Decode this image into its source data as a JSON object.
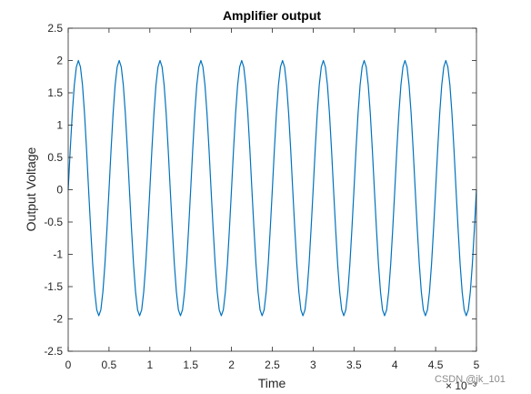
{
  "chart_data": {
    "type": "line",
    "title": "Amplifier output",
    "xlabel": "Time",
    "ylabel": "Output Voltage",
    "x_exponent": "× 10⁻³",
    "xlim": [
      0,
      5
    ],
    "ylim": [
      -2.5,
      2.5
    ],
    "x_ticks": [
      0,
      0.5,
      1,
      1.5,
      2,
      2.5,
      3,
      3.5,
      4,
      4.5,
      5
    ],
    "x_tick_labels": [
      "0",
      "0.5",
      "1",
      "1.5",
      "2",
      "2.5",
      "3",
      "3.5",
      "4",
      "4.5",
      "5"
    ],
    "y_ticks": [
      -2.5,
      -2,
      -1.5,
      -1,
      -0.5,
      0,
      0.5,
      1,
      1.5,
      2,
      2.5
    ],
    "y_tick_labels": [
      "-2.5",
      "-2",
      "-1.5",
      "-1",
      "-0.5",
      "0",
      "0.5",
      "1",
      "1.5",
      "2",
      "2.5"
    ],
    "grid": false,
    "line_color": "#0072BD",
    "series": [
      {
        "x": [
          0,
          0.025,
          0.05,
          0.075,
          0.1,
          0.125,
          0.15,
          0.175,
          0.2,
          0.225,
          0.25,
          0.275,
          0.3,
          0.325,
          0.35,
          0.375,
          0.4,
          0.425,
          0.45,
          0.475,
          0.5,
          0.525,
          0.55,
          0.575,
          0.6,
          0.625,
          0.65,
          0.675,
          0.7,
          0.725,
          0.75,
          0.775,
          0.8,
          0.825,
          0.85,
          0.875,
          0.9,
          0.925,
          0.95,
          0.975,
          1,
          1.025,
          1.05,
          1.075,
          1.1,
          1.125,
          1.15,
          1.175,
          1.2,
          1.225,
          1.25,
          1.275,
          1.3,
          1.325,
          1.35,
          1.375,
          1.4,
          1.425,
          1.45,
          1.475,
          1.5,
          1.525,
          1.55,
          1.575,
          1.6,
          1.625,
          1.65,
          1.675,
          1.7,
          1.725,
          1.75,
          1.775,
          1.8,
          1.825,
          1.85,
          1.875,
          1.9,
          1.925,
          1.95,
          1.975,
          2,
          2.025,
          2.05,
          2.075,
          2.1,
          2.125,
          2.15,
          2.175,
          2.2,
          2.225,
          2.25,
          2.275,
          2.3,
          2.325,
          2.35,
          2.375,
          2.4,
          2.425,
          2.45,
          2.475,
          2.5,
          2.525,
          2.55,
          2.575,
          2.6,
          2.625,
          2.65,
          2.675,
          2.7,
          2.725,
          2.75,
          2.775,
          2.8,
          2.825,
          2.85,
          2.875,
          2.9,
          2.925,
          2.95,
          2.975,
          3,
          3.025,
          3.05,
          3.075,
          3.1,
          3.125,
          3.15,
          3.175,
          3.2,
          3.225,
          3.25,
          3.275,
          3.3,
          3.325,
          3.35,
          3.375,
          3.4,
          3.425,
          3.45,
          3.475,
          3.5,
          3.525,
          3.55,
          3.575,
          3.6,
          3.625,
          3.65,
          3.675,
          3.7,
          3.725,
          3.75,
          3.775,
          3.8,
          3.825,
          3.85,
          3.875,
          3.9,
          3.925,
          3.95,
          3.975,
          4,
          4.025,
          4.05,
          4.075,
          4.1,
          4.125,
          4.15,
          4.175,
          4.2,
          4.225,
          4.25,
          4.275,
          4.3,
          4.325,
          4.35,
          4.375,
          4.4,
          4.425,
          4.45,
          4.475,
          4.5,
          4.525,
          4.55,
          4.575,
          4.6,
          4.625,
          4.65,
          4.675,
          4.7,
          4.725,
          4.75,
          4.775,
          4.8,
          4.825,
          4.85,
          4.875,
          4.9,
          4.925,
          4.95,
          4.975,
          5
        ],
        "y": [
          0,
          0.62,
          1.18,
          1.62,
          1.9,
          2.0,
          1.9,
          1.62,
          1.18,
          0.62,
          0,
          -0.6,
          -1.15,
          -1.58,
          -1.86,
          -1.95,
          -1.86,
          -1.58,
          -1.15,
          -0.6,
          0,
          0.62,
          1.18,
          1.62,
          1.9,
          2.0,
          1.9,
          1.62,
          1.18,
          0.62,
          0,
          -0.6,
          -1.15,
          -1.58,
          -1.86,
          -1.95,
          -1.86,
          -1.58,
          -1.15,
          -0.6,
          0,
          0.62,
          1.18,
          1.62,
          1.9,
          2.0,
          1.9,
          1.62,
          1.18,
          0.62,
          0,
          -0.6,
          -1.15,
          -1.58,
          -1.86,
          -1.95,
          -1.86,
          -1.58,
          -1.15,
          -0.6,
          0,
          0.62,
          1.18,
          1.62,
          1.9,
          2.0,
          1.9,
          1.62,
          1.18,
          0.62,
          0,
          -0.6,
          -1.15,
          -1.58,
          -1.86,
          -1.95,
          -1.86,
          -1.58,
          -1.15,
          -0.6,
          0,
          0.62,
          1.18,
          1.62,
          1.9,
          2.0,
          1.9,
          1.62,
          1.18,
          0.62,
          0,
          -0.6,
          -1.15,
          -1.58,
          -1.86,
          -1.95,
          -1.86,
          -1.58,
          -1.15,
          -0.6,
          0,
          0.62,
          1.18,
          1.62,
          1.9,
          2.0,
          1.9,
          1.62,
          1.18,
          0.62,
          0,
          -0.6,
          -1.15,
          -1.58,
          -1.86,
          -1.95,
          -1.86,
          -1.58,
          -1.15,
          -0.6,
          0,
          0.62,
          1.18,
          1.62,
          1.9,
          2.0,
          1.9,
          1.62,
          1.18,
          0.62,
          0,
          -0.6,
          -1.15,
          -1.58,
          -1.86,
          -1.95,
          -1.86,
          -1.58,
          -1.15,
          -0.6,
          0,
          0.62,
          1.18,
          1.62,
          1.9,
          2.0,
          1.9,
          1.62,
          1.18,
          0.62,
          0,
          -0.6,
          -1.15,
          -1.58,
          -1.86,
          -1.95,
          -1.86,
          -1.58,
          -1.15,
          -0.6,
          0,
          0.62,
          1.18,
          1.62,
          1.9,
          2.0,
          1.9,
          1.62,
          1.18,
          0.62,
          0,
          -0.6,
          -1.15,
          -1.58,
          -1.86,
          -1.95,
          -1.86,
          -1.58,
          -1.15,
          -0.6,
          0,
          0.62,
          1.18,
          1.62,
          1.9,
          2.0,
          1.9,
          1.62,
          1.18,
          0.62,
          0,
          -0.6,
          -1.15,
          -1.58,
          -1.86,
          -1.95,
          -1.86,
          -1.58,
          -1.15,
          -0.6,
          0
        ]
      }
    ]
  },
  "watermark": "CSDN @jk_101"
}
